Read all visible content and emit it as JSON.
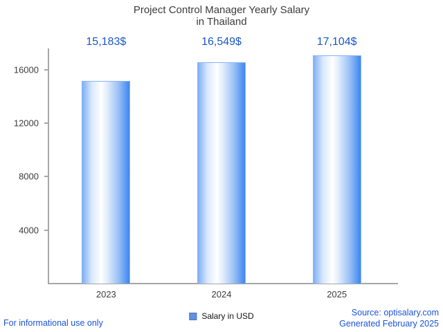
{
  "header": {
    "title_line1": "Project Control Manager Yearly Salary",
    "title_line2": "in Thailand"
  },
  "chart_data": {
    "type": "bar",
    "title": "Project Control Manager Yearly Salary in Thailand",
    "categories": [
      "2023",
      "2024",
      "2025"
    ],
    "values": [
      15183,
      16549,
      17104
    ],
    "value_labels": [
      "15,183$",
      "16,549$",
      "17,104$"
    ],
    "xlabel": "",
    "ylabel": "",
    "ylim": [
      0,
      17600
    ],
    "yticks": [
      4000,
      8000,
      12000,
      16000
    ],
    "grid": false,
    "legend_position": "bottom",
    "series_name": "Salary in USD"
  },
  "legend": {
    "label": "Salary in USD"
  },
  "footer": {
    "left": "For informational use only",
    "source": "Source: optisalary.com",
    "generated": "Generated February 2025"
  },
  "colors": {
    "value_label": "#1857c4",
    "bar_edge_dark": "#3e86f0",
    "bar_edge_light": "#7fb0f4",
    "axis": "#a6a6a6",
    "footer_link": "#1a53d8",
    "title": "#3b3b3b",
    "legend_swatch": "#6191e0"
  }
}
